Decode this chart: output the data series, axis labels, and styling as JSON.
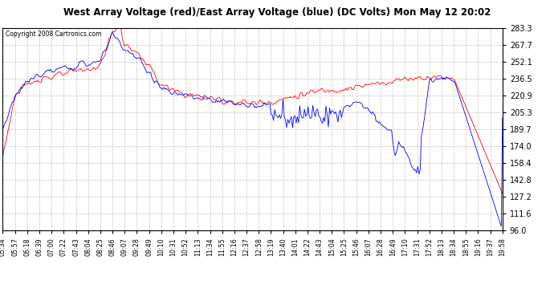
{
  "title": "West Array Voltage (red)/East Array Voltage (blue) (DC Volts) Mon May 12 20:02",
  "copyright": "Copyright 2008 Cartronics.com",
  "y_min": 96.0,
  "y_max": 283.3,
  "y_ticks": [
    96.0,
    111.6,
    127.2,
    142.8,
    158.4,
    174.0,
    189.7,
    205.3,
    220.9,
    236.5,
    252.1,
    267.7,
    283.3
  ],
  "x_labels": [
    "05:34",
    "05:57",
    "06:18",
    "06:39",
    "07:00",
    "07:22",
    "07:43",
    "08:04",
    "08:25",
    "08:46",
    "09:07",
    "09:28",
    "09:49",
    "10:10",
    "10:31",
    "10:52",
    "11:13",
    "11:34",
    "11:55",
    "12:16",
    "12:37",
    "12:58",
    "13:19",
    "13:40",
    "14:01",
    "14:22",
    "14:43",
    "15:04",
    "15:25",
    "15:46",
    "16:07",
    "16:28",
    "16:49",
    "17:10",
    "17:31",
    "17:52",
    "18:13",
    "18:34",
    "18:55",
    "19:16",
    "19:37",
    "19:58"
  ],
  "background_color": "#ffffff",
  "grid_color": "#bbbbbb",
  "red_color": "#ff0000",
  "blue_color": "#0000ff",
  "title_bg": "#c0c0c0",
  "plot_bg": "#ffffff"
}
